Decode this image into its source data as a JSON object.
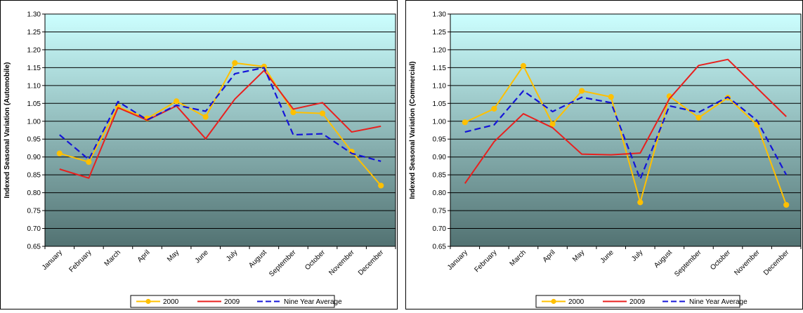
{
  "chart_data": [
    {
      "type": "line",
      "categories": [
        "January",
        "February",
        "March",
        "April",
        "May",
        "June",
        "July",
        "August",
        "September",
        "October",
        "November",
        "December"
      ],
      "ylabel": "Indexed Seasonal Variation (Automobile)",
      "ylim": [
        0.65,
        1.3
      ],
      "yticks": [
        "0.65",
        "0.70",
        "0.75",
        "0.80",
        "0.85",
        "0.90",
        "0.95",
        "1.00",
        "1.05",
        "1.10",
        "1.15",
        "1.20",
        "1.25",
        "1.30"
      ],
      "grid": true,
      "legend_position": "bottom",
      "series": [
        {
          "name": "2000",
          "color": "#FFC000",
          "marker": "circle",
          "dash": "solid",
          "values": [
            0.91,
            0.886,
            1.04,
            1.008,
            1.056,
            1.012,
            1.163,
            1.153,
            1.025,
            1.022,
            0.915,
            0.82
          ]
        },
        {
          "name": "2009",
          "color": "#E8201E",
          "marker": "none",
          "dash": "solid",
          "values": [
            0.866,
            0.841,
            1.038,
            1.003,
            1.043,
            0.951,
            1.062,
            1.142,
            1.034,
            1.052,
            0.97,
            0.986
          ]
        },
        {
          "name": "Nine Year Average",
          "color": "#1515D8",
          "marker": "none",
          "dash": "dashed",
          "values": [
            0.962,
            0.893,
            1.055,
            1.004,
            1.045,
            1.028,
            1.133,
            1.15,
            0.962,
            0.965,
            0.91,
            0.888
          ]
        }
      ]
    },
    {
      "type": "line",
      "categories": [
        "January",
        "February",
        "March",
        "April",
        "May",
        "June",
        "July",
        "August",
        "September",
        "October",
        "November",
        "December"
      ],
      "ylabel": "Indexed Seasonal Variation (Commercial)",
      "ylim": [
        0.65,
        1.3
      ],
      "yticks": [
        "0.65",
        "0.70",
        "0.75",
        "0.80",
        "0.85",
        "0.90",
        "0.95",
        "1.00",
        "1.05",
        "1.10",
        "1.15",
        "1.20",
        "1.25",
        "1.30"
      ],
      "grid": true,
      "legend_position": "bottom",
      "series": [
        {
          "name": "2000",
          "color": "#FFC000",
          "marker": "circle",
          "dash": "solid",
          "values": [
            0.997,
            1.035,
            1.155,
            0.992,
            1.085,
            1.068,
            0.773,
            1.07,
            1.01,
            1.066,
            0.99,
            0.766
          ]
        },
        {
          "name": "2009",
          "color": "#E8201E",
          "marker": "none",
          "dash": "solid",
          "values": [
            0.826,
            0.943,
            1.021,
            0.982,
            0.908,
            0.906,
            0.911,
            1.063,
            1.156,
            1.173,
            1.093,
            1.013
          ]
        },
        {
          "name": "Nine Year Average",
          "color": "#1515D8",
          "marker": "none",
          "dash": "dashed",
          "values": [
            0.97,
            0.99,
            1.085,
            1.027,
            1.067,
            1.052,
            0.838,
            1.043,
            1.025,
            1.068,
            1.002,
            0.85
          ]
        }
      ]
    }
  ]
}
